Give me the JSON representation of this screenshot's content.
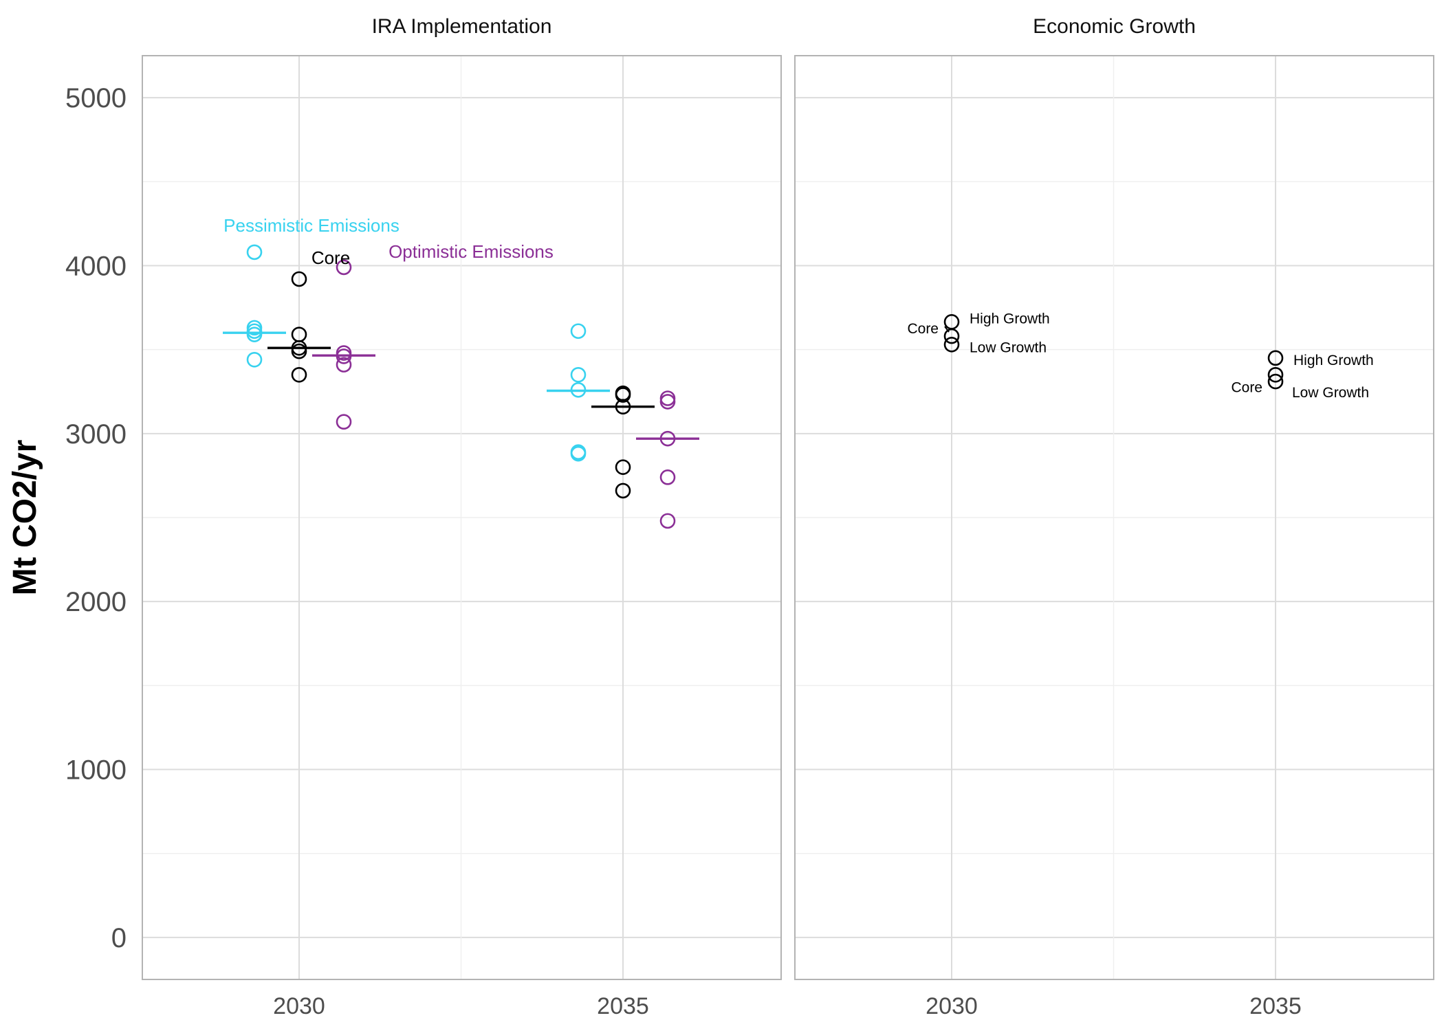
{
  "chart_data": [
    {
      "type": "scatter",
      "title": "IRA Implementation",
      "ylabel": "Mt CO2/yr",
      "ylim": [
        -250,
        5250
      ],
      "yticks": [
        0,
        1000,
        2000,
        3000,
        4000,
        5000
      ],
      "xticks": [
        "2030",
        "2035"
      ],
      "grid": true,
      "series": [
        {
          "name": "Pessimistic Emissions",
          "color": "#38d2ef",
          "points": [
            {
              "year": "2030",
              "values": [
                4080,
                3630,
                3610,
                3590,
                3440
              ]
            },
            {
              "year": "2035",
              "values": [
                3610,
                3350,
                3260,
                2890,
                2880
              ]
            }
          ],
          "means": {
            "2030": 3600,
            "2035": 3255
          }
        },
        {
          "name": "Core",
          "color": "#000000",
          "points": [
            {
              "year": "2030",
              "values": [
                3920,
                3590,
                3510,
                3490,
                3350
              ]
            },
            {
              "year": "2035",
              "values": [
                3240,
                3230,
                3160,
                2800,
                2660
              ]
            }
          ],
          "means": {
            "2030": 3510,
            "2035": 3160
          }
        },
        {
          "name": "Optimistic Emissions",
          "color": "#8b2f96",
          "points": [
            {
              "year": "2030",
              "values": [
                3990,
                3480,
                3460,
                3410,
                3070
              ]
            },
            {
              "year": "2035",
              "values": [
                3210,
                3190,
                2970,
                2740,
                2480
              ]
            }
          ],
          "means": {
            "2030": 3465,
            "2035": 2970
          }
        }
      ]
    },
    {
      "type": "scatter",
      "title": "Economic Growth",
      "ylim": [
        -250,
        5250
      ],
      "yticks": [
        0,
        1000,
        2000,
        3000,
        4000,
        5000
      ],
      "xticks": [
        "2030",
        "2035"
      ],
      "grid": true,
      "points": [
        {
          "year": "2030",
          "label": "High Growth",
          "value": 3665
        },
        {
          "year": "2030",
          "label": "Core",
          "value": 3580
        },
        {
          "year": "2030",
          "label": "Low Growth",
          "value": 3530
        },
        {
          "year": "2035",
          "label": "High Growth",
          "value": 3450
        },
        {
          "year": "2035",
          "label": "Core",
          "value": 3350
        },
        {
          "year": "2035",
          "label": "Low Growth",
          "value": 3310
        }
      ]
    }
  ]
}
